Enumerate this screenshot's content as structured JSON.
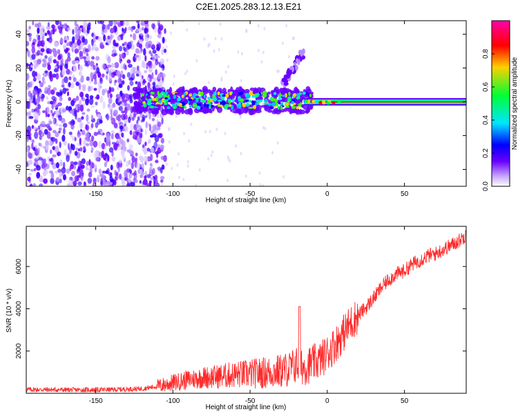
{
  "figure": {
    "title": "C2E1.2025.283.12.13.E21"
  },
  "chart_data": [
    {
      "type": "heatmap",
      "xlabel": "Height of straight line (km)",
      "ylabel": "Frequency (Hz)",
      "xlim": [
        -195,
        90
      ],
      "ylim": [
        -50,
        48
      ],
      "x_ticks": [
        -150,
        -100,
        -50,
        0,
        50
      ],
      "y_ticks": [
        -40,
        -20,
        0,
        20,
        40
      ],
      "colorbar": {
        "label": "Normalized spectral amplitude",
        "range": [
          0,
          1
        ],
        "ticks": [
          0.0,
          0.2,
          0.4,
          0.6,
          0.8
        ],
        "tick_labels": [
          "0.0",
          "0.2",
          "0.4",
          "0.6",
          "0.8"
        ]
      },
      "features": [
        {
          "name": "scattered low-amplitude noise",
          "x_range": [
            -195,
            -100
          ],
          "freq_range": [
            -50,
            48
          ]
        },
        {
          "name": "broadband cluster around 0 Hz",
          "x_range": [
            -125,
            -10
          ],
          "freq_range": [
            -8,
            10
          ]
        },
        {
          "name": "rising branch",
          "x_range": [
            -30,
            -15
          ],
          "freq_range": [
            10,
            33
          ]
        },
        {
          "name": "narrow band at 0 Hz",
          "x_range": [
            -15,
            90
          ],
          "freq_range": [
            -2,
            2
          ]
        }
      ],
      "colormap": [
        "#ffffff",
        "#6a00ff",
        "#0000ff",
        "#00e5ff",
        "#00ff33",
        "#ffd000",
        "#ff0000",
        "#ff00aa"
      ]
    },
    {
      "type": "line",
      "xlabel": "Height of straight line (km)",
      "ylabel": "SNR (10 * v/v)",
      "xlim": [
        -195,
        90
      ],
      "ylim": [
        0,
        7900
      ],
      "x_ticks": [
        -150,
        -100,
        -50,
        0,
        50
      ],
      "y_ticks": [
        2000,
        4000,
        6000
      ],
      "color": "#ff2a2a",
      "series": [
        {
          "x": [
            -195,
            -180,
            -160,
            -140,
            -120,
            -110,
            -100,
            -90,
            -80,
            -70,
            -60,
            -50,
            -40,
            -30,
            -25,
            -20,
            -15,
            -10,
            -5,
            0,
            5,
            10,
            15,
            20,
            25,
            30,
            35,
            40,
            45,
            50,
            55,
            60,
            65,
            70,
            75,
            80,
            85,
            90
          ],
          "y": [
            180,
            170,
            160,
            170,
            220,
            330,
            500,
            650,
            750,
            800,
            880,
            920,
            980,
            1050,
            1150,
            1350,
            1250,
            1400,
            1550,
            1900,
            2300,
            2800,
            3300,
            3700,
            4050,
            4500,
            5000,
            5400,
            5650,
            5800,
            6100,
            6300,
            6500,
            6600,
            6800,
            7000,
            7200,
            7500
          ]
        }
      ],
      "peaks": [
        {
          "x": -18,
          "y": 4100
        },
        {
          "x": 90,
          "y": 7700
        }
      ]
    }
  ]
}
